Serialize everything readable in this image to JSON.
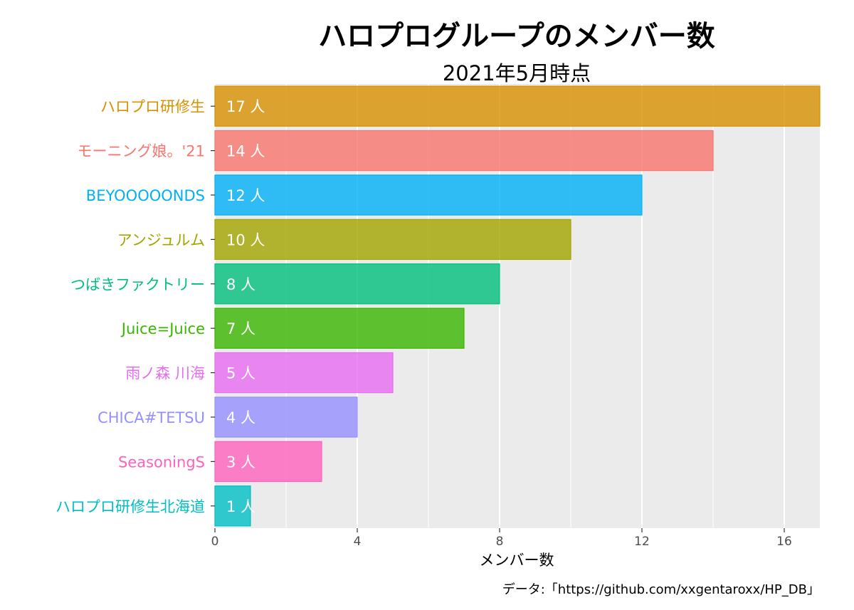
{
  "chart_data": {
    "type": "bar",
    "orientation": "horizontal",
    "title": "ハロプログループのメンバー数",
    "subtitle": "2021年5月時点",
    "xlabel": "メンバー数",
    "ylabel": "",
    "xlim": [
      0,
      17
    ],
    "xticks": [
      0,
      4,
      8,
      12,
      16
    ],
    "grid": true,
    "legend": "none",
    "value_suffix": " 人",
    "caption": "データ:「https://github.com/xxgentaroxx/HP_DB」",
    "categories": [
      "ハロプロ研修生",
      "モーニング娘。'21",
      "BEYOOOOONDS",
      "アンジュルム",
      "つばきファクトリー",
      "Juice=Juice",
      "雨ノ森 川海",
      "CHICA#TETSU",
      "SeasoningS",
      "ハロプロ研修生北海道"
    ],
    "values": [
      17,
      14,
      12,
      10,
      8,
      7,
      5,
      4,
      3,
      1
    ],
    "colors": [
      "#D89000",
      "#F8766D",
      "#00B0F6",
      "#A3A500",
      "#00BF7D",
      "#39B600",
      "#E76BF3",
      "#9590FF",
      "#FF62BC",
      "#00BFC4"
    ]
  }
}
